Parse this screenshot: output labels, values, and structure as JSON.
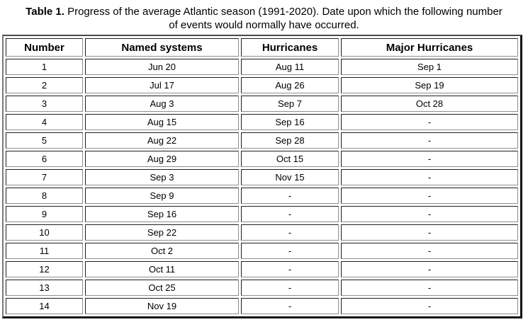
{
  "caption": {
    "label": "Table 1.",
    "line1": "Progress of the average Atlantic season (1991-2020). Date upon which the following number",
    "line2": "of events would normally have occurred."
  },
  "table": {
    "columns": [
      "Number",
      "Named systems",
      "Hurricanes",
      "Major Hurricanes"
    ],
    "rows": [
      [
        "1",
        "Jun 20",
        "Aug 11",
        "Sep 1"
      ],
      [
        "2",
        "Jul 17",
        "Aug 26",
        "Sep 19"
      ],
      [
        "3",
        "Aug 3",
        "Sep 7",
        "Oct 28"
      ],
      [
        "4",
        "Aug 15",
        "Sep 16",
        "-"
      ],
      [
        "5",
        "Aug 22",
        "Sep 28",
        "-"
      ],
      [
        "6",
        "Aug 29",
        "Oct 15",
        "-"
      ],
      [
        "7",
        "Sep 3",
        "Nov 15",
        "-"
      ],
      [
        "8",
        "Sep 9",
        "-",
        "-"
      ],
      [
        "9",
        "Sep 16",
        "-",
        "-"
      ],
      [
        "10",
        "Sep 22",
        "-",
        "-"
      ],
      [
        "11",
        "Oct 2",
        "-",
        "-"
      ],
      [
        "12",
        "Oct 11",
        "-",
        "-"
      ],
      [
        "13",
        "Oct 25",
        "-",
        "-"
      ],
      [
        "14",
        "Nov 19",
        "-",
        "-"
      ]
    ]
  },
  "colors": {
    "background": "#ffffff",
    "text": "#000000",
    "outer_border_dark": "#141414",
    "cell_border_dark": "#1e1e1e",
    "cell_border_light": "#8f8f8f"
  }
}
